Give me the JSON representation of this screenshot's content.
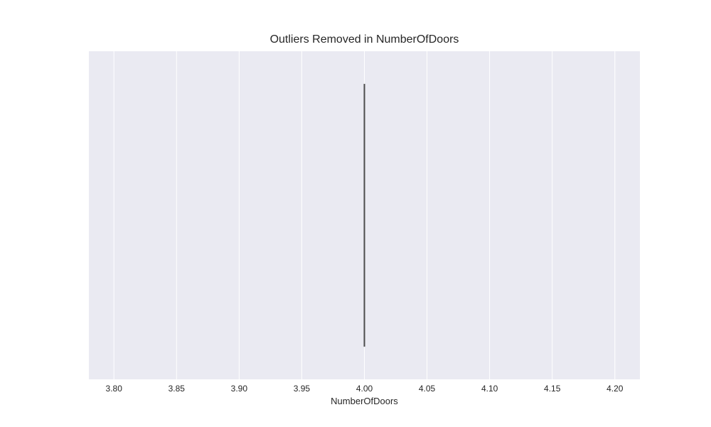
{
  "chart_data": {
    "type": "box",
    "title": "Outliers Removed in NumberOfDoors",
    "xlabel": "NumberOfDoors",
    "ylabel": "",
    "xlim": [
      3.78,
      4.22
    ],
    "xticks": [
      "3.80",
      "3.85",
      "3.90",
      "3.95",
      "4.00",
      "4.05",
      "4.10",
      "4.15",
      "4.20"
    ],
    "xtick_values": [
      3.8,
      3.85,
      3.9,
      3.95,
      4.0,
      4.05,
      4.1,
      4.15,
      4.2
    ],
    "box": {
      "min": 4.0,
      "q1": 4.0,
      "median": 4.0,
      "q3": 4.0,
      "max": 4.0
    },
    "grid": true,
    "colors": {
      "background": "#eaeaf2",
      "grid": "#ffffff",
      "box": "#4c4c4c",
      "text": "#262626"
    }
  }
}
